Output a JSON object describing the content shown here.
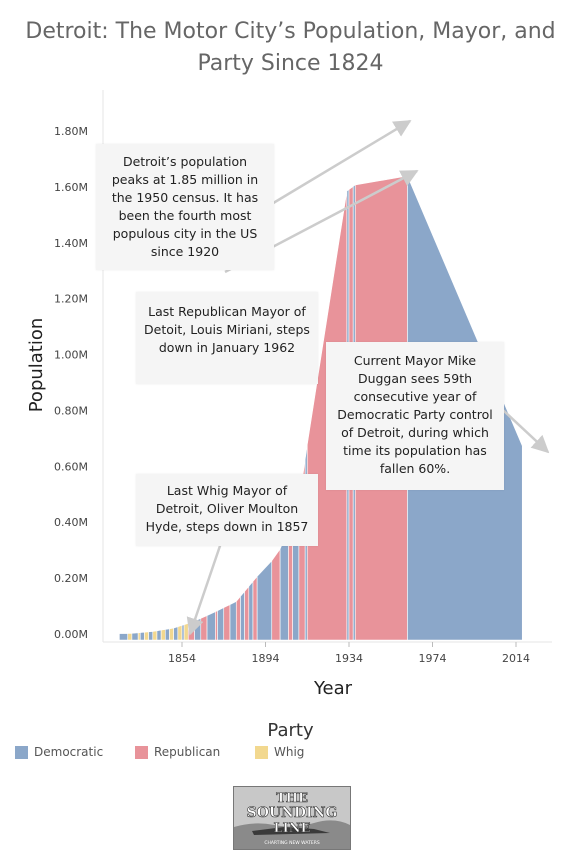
{
  "title": "Detroit: The Motor City’s Population, Mayor, and Party Since 1824",
  "colors": {
    "Democratic": "#8ba7c9",
    "Republican": "#e8939a",
    "Whig": "#f2d88f"
  },
  "legend": {
    "title": "Party",
    "items": [
      {
        "label": "Democratic",
        "color": "#8ba7c9"
      },
      {
        "label": "Republican",
        "color": "#e8939a"
      },
      {
        "label": "Whig",
        "color": "#f2d88f"
      }
    ]
  },
  "annotations": {
    "peak": "Detroit’s population peaks at 1.85 million in the 1950 census. It has been the fourth most populous city in the US since 1920",
    "republican": "Last Republican Mayor of Detoit, Louis Miriani, steps down in January 1962",
    "democratic": "Current Mayor Mike Duggan sees 59th consecutive year of Democratic Party control of Detroit, during which time its population has fallen 60%.",
    "whig": "Last Whig Mayor of Detroit, Oliver Moulton Hyde, steps down in 1857"
  },
  "logo": {
    "line1": "THE",
    "line2": "SOUNDING",
    "line3": "LINE",
    "tagline": "CHARTING NEW WATERS"
  },
  "chart_data": {
    "type": "area",
    "title": "Detroit: The Motor City’s Population, Mayor, and Party Since 1824",
    "xlabel": "Year",
    "ylabel": "Population",
    "x_ticks": [
      "1854",
      "1894",
      "1934",
      "1974",
      "2014"
    ],
    "y_ticks": [
      "0.00M",
      "0.20M",
      "0.40M",
      "0.60M",
      "0.80M",
      "1.00M",
      "1.20M",
      "1.40M",
      "1.60M",
      "1.80M"
    ],
    "ylim": [
      0,
      1900000
    ],
    "xlim": [
      1822,
      2020
    ],
    "grid": false,
    "legend_position": "bottom",
    "population": [
      {
        "year": 1824,
        "value": 1400
      },
      {
        "year": 1830,
        "value": 2222
      },
      {
        "year": 1834,
        "value": 4973
      },
      {
        "year": 1840,
        "value": 9102
      },
      {
        "year": 1850,
        "value": 21019
      },
      {
        "year": 1860,
        "value": 45619
      },
      {
        "year": 1870,
        "value": 79577
      },
      {
        "year": 1880,
        "value": 116340
      },
      {
        "year": 1890,
        "value": 205876
      },
      {
        "year": 1900,
        "value": 285704
      },
      {
        "year": 1910,
        "value": 465766
      },
      {
        "year": 1920,
        "value": 993678
      },
      {
        "year": 1930,
        "value": 1568662
      },
      {
        "year": 1940,
        "value": 1623452
      },
      {
        "year": 1950,
        "value": 1849568
      },
      {
        "year": 1960,
        "value": 1670144
      },
      {
        "year": 1970,
        "value": 1514063
      },
      {
        "year": 1980,
        "value": 1203368
      },
      {
        "year": 1990,
        "value": 1027974
      },
      {
        "year": 2000,
        "value": 951270
      },
      {
        "year": 2010,
        "value": 713777
      },
      {
        "year": 2017,
        "value": 673104
      }
    ],
    "party_segments": [
      {
        "start": 1824,
        "end": 1828,
        "party": "Democratic"
      },
      {
        "start": 1828,
        "end": 1830,
        "party": "Whig"
      },
      {
        "start": 1830,
        "end": 1833,
        "party": "Democratic"
      },
      {
        "start": 1833,
        "end": 1834,
        "party": "Whig"
      },
      {
        "start": 1834,
        "end": 1836,
        "party": "Democratic"
      },
      {
        "start": 1836,
        "end": 1838,
        "party": "Whig"
      },
      {
        "start": 1838,
        "end": 1840,
        "party": "Democratic"
      },
      {
        "start": 1840,
        "end": 1842,
        "party": "Whig"
      },
      {
        "start": 1842,
        "end": 1844,
        "party": "Democratic"
      },
      {
        "start": 1844,
        "end": 1846,
        "party": "Whig"
      },
      {
        "start": 1846,
        "end": 1848,
        "party": "Democratic"
      },
      {
        "start": 1848,
        "end": 1850,
        "party": "Whig"
      },
      {
        "start": 1850,
        "end": 1852,
        "party": "Democratic"
      },
      {
        "start": 1852,
        "end": 1854,
        "party": "Whig"
      },
      {
        "start": 1854,
        "end": 1855,
        "party": "Democratic"
      },
      {
        "start": 1855,
        "end": 1857,
        "party": "Whig"
      },
      {
        "start": 1857,
        "end": 1860,
        "party": "Republican"
      },
      {
        "start": 1860,
        "end": 1863,
        "party": "Democratic"
      },
      {
        "start": 1863,
        "end": 1866,
        "party": "Republican"
      },
      {
        "start": 1866,
        "end": 1870,
        "party": "Democratic"
      },
      {
        "start": 1870,
        "end": 1871,
        "party": "Republican"
      },
      {
        "start": 1871,
        "end": 1874,
        "party": "Democratic"
      },
      {
        "start": 1874,
        "end": 1877,
        "party": "Republican"
      },
      {
        "start": 1877,
        "end": 1880,
        "party": "Democratic"
      },
      {
        "start": 1880,
        "end": 1882,
        "party": "Republican"
      },
      {
        "start": 1882,
        "end": 1884,
        "party": "Democratic"
      },
      {
        "start": 1884,
        "end": 1886,
        "party": "Republican"
      },
      {
        "start": 1886,
        "end": 1888,
        "party": "Democratic"
      },
      {
        "start": 1888,
        "end": 1890,
        "party": "Republican"
      },
      {
        "start": 1890,
        "end": 1897,
        "party": "Democratic"
      },
      {
        "start": 1897,
        "end": 1901,
        "party": "Republican"
      },
      {
        "start": 1901,
        "end": 1905,
        "party": "Democratic"
      },
      {
        "start": 1905,
        "end": 1907,
        "party": "Republican"
      },
      {
        "start": 1907,
        "end": 1910,
        "party": "Democratic"
      },
      {
        "start": 1910,
        "end": 1913,
        "party": "Republican"
      },
      {
        "start": 1913,
        "end": 1914,
        "party": "Democratic"
      },
      {
        "start": 1914,
        "end": 1933,
        "party": "Republican"
      },
      {
        "start": 1933,
        "end": 1934,
        "party": "Democratic"
      },
      {
        "start": 1934,
        "end": 1936,
        "party": "Republican"
      },
      {
        "start": 1936,
        "end": 1937,
        "party": "Democratic"
      },
      {
        "start": 1937,
        "end": 1962,
        "party": "Republican"
      },
      {
        "start": 1962,
        "end": 2017,
        "party": "Democratic"
      }
    ]
  }
}
